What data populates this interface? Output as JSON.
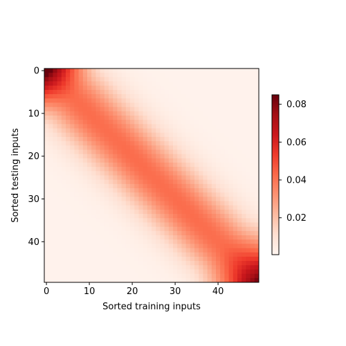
{
  "chart_data": {
    "type": "heatmap",
    "title": "",
    "xlabel": "Sorted training inputs",
    "ylabel": "Sorted testing inputs",
    "n_train": 50,
    "n_test": 50,
    "x_ticks": [
      0,
      10,
      20,
      30,
      40
    ],
    "y_ticks": [
      0,
      10,
      20,
      30,
      40
    ],
    "colormap": "Reds",
    "colorbar": {
      "vmin": 0.0005,
      "vmax": 0.085,
      "ticks": [
        0.02,
        0.04,
        0.06,
        0.08
      ],
      "tick_labels": [
        "0.02",
        "0.04",
        "0.06",
        "0.08"
      ]
    },
    "pattern_description_values": {
      "peak_top_left": 0.085,
      "peak_bottom_right": 0.075,
      "diagonal_mid": 0.045,
      "background": 0.002
    }
  }
}
